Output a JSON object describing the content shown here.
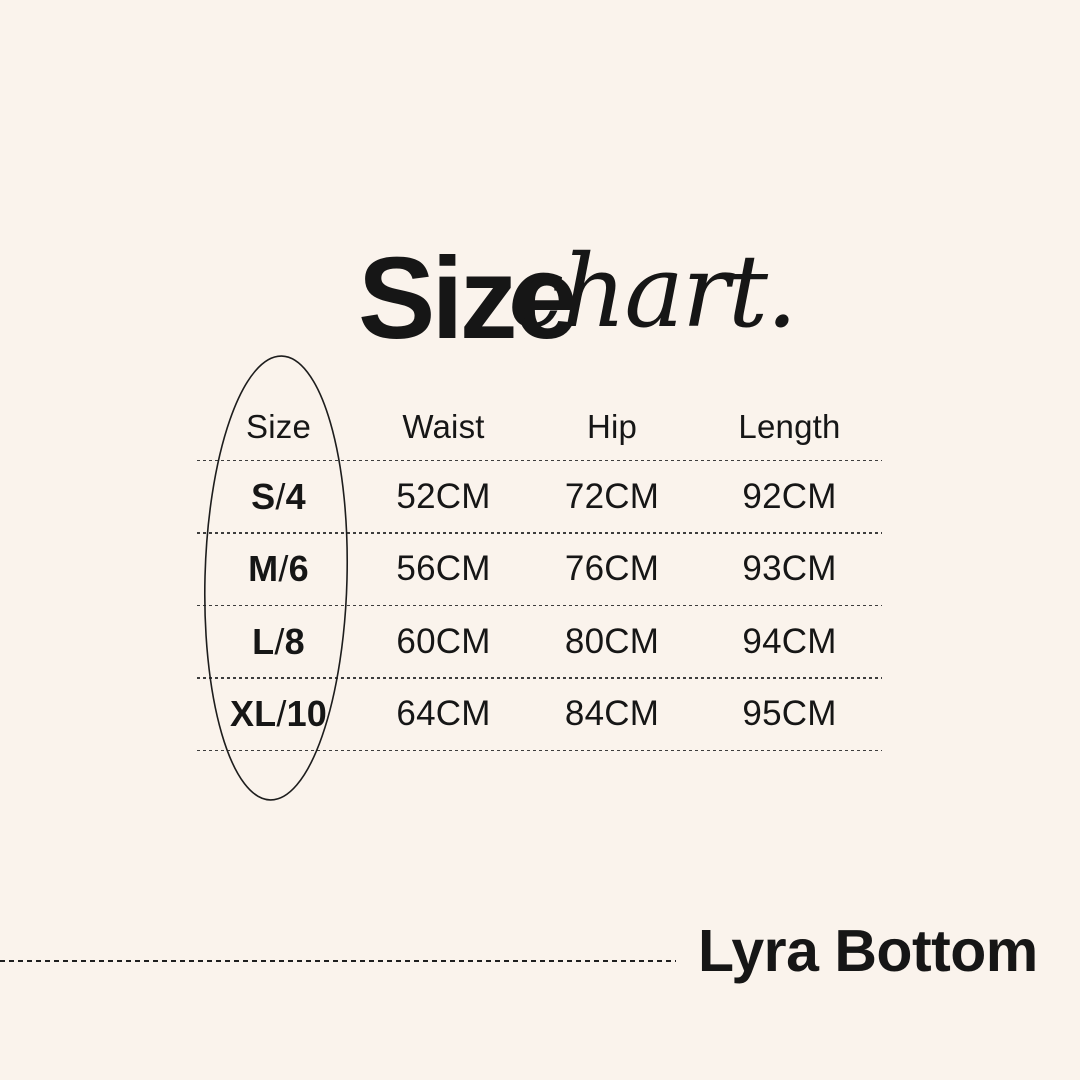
{
  "page": {
    "background_color": "#FAF3EC",
    "text_color": "#161616"
  },
  "title": {
    "main": "Size",
    "script": "chart."
  },
  "table": {
    "headers": [
      "Size",
      "Waist",
      "Hip",
      "Length"
    ],
    "rows": [
      {
        "size": "S/4",
        "waist": "52CM",
        "hip": "72CM",
        "length": "92CM"
      },
      {
        "size": "M/6",
        "waist": "56CM",
        "hip": "76CM",
        "length": "93CM"
      },
      {
        "size": "L/8",
        "waist": "60CM",
        "hip": "80CM",
        "length": "94CM"
      },
      {
        "size": "XL/10",
        "waist": "64CM",
        "hip": "84CM",
        "length": "95CM"
      }
    ]
  },
  "footer": {
    "product_name": "Lyra Bottom"
  },
  "chart_data": {
    "type": "table",
    "title": "Size chart.",
    "columns": [
      "Size",
      "Waist",
      "Hip",
      "Length"
    ],
    "rows": [
      [
        "S/4",
        "52CM",
        "72CM",
        "92CM"
      ],
      [
        "M/6",
        "56CM",
        "76CM",
        "93CM"
      ],
      [
        "L/8",
        "60CM",
        "80CM",
        "94CM"
      ],
      [
        "XL/10",
        "64CM",
        "84CM",
        "95CM"
      ]
    ],
    "annotations": [
      "Hand-drawn ellipse circles the Size column",
      "Dashed rule with product name Lyra Bottom at bottom right"
    ],
    "layout": {
      "grid": "dashed horizontal row separators",
      "unit": "CM"
    }
  }
}
